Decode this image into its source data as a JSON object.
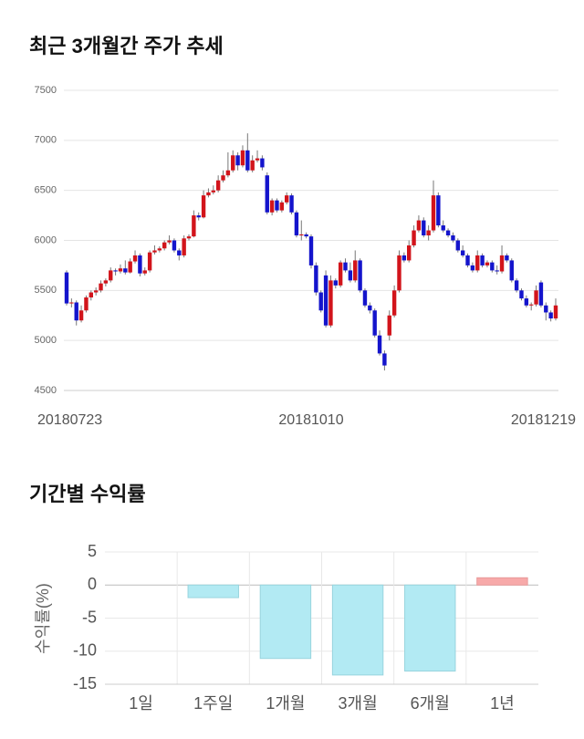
{
  "chart_data": [
    {
      "type": "candlestick",
      "title": "최근 3개월간 주가 추세",
      "up_color": "#d2141b",
      "down_color": "#1414cc",
      "ylim": [
        4500,
        7500
      ],
      "yticks": [
        4500,
        5000,
        5500,
        6000,
        6500,
        7000,
        7500
      ],
      "grid": true,
      "label_indices": [
        0,
        50,
        100
      ],
      "labels": [
        "20180723",
        "20181010",
        "20181219"
      ],
      "ohlc": [
        [
          5680,
          5700,
          5350,
          5370
        ],
        [
          5370,
          5420,
          5330,
          5380
        ],
        [
          5380,
          5400,
          5150,
          5200
        ],
        [
          5200,
          5350,
          5180,
          5300
        ],
        [
          5300,
          5450,
          5280,
          5430
        ],
        [
          5430,
          5500,
          5400,
          5480
        ],
        [
          5480,
          5530,
          5450,
          5500
        ],
        [
          5500,
          5600,
          5480,
          5570
        ],
        [
          5570,
          5620,
          5540,
          5600
        ],
        [
          5600,
          5730,
          5580,
          5700
        ],
        [
          5700,
          5720,
          5650,
          5690
        ],
        [
          5690,
          5760,
          5670,
          5720
        ],
        [
          5720,
          5800,
          5660,
          5680
        ],
        [
          5680,
          5820,
          5670,
          5790
        ],
        [
          5790,
          5900,
          5770,
          5850
        ],
        [
          5850,
          5870,
          5640,
          5670
        ],
        [
          5670,
          5730,
          5650,
          5700
        ],
        [
          5700,
          5900,
          5680,
          5880
        ],
        [
          5880,
          5950,
          5860,
          5900
        ],
        [
          5900,
          5940,
          5880,
          5920
        ],
        [
          5920,
          6000,
          5900,
          5980
        ],
        [
          5980,
          6050,
          5960,
          6000
        ],
        [
          6000,
          6020,
          5880,
          5900
        ],
        [
          5900,
          5920,
          5800,
          5850
        ],
        [
          5850,
          6050,
          5830,
          6020
        ],
        [
          6020,
          6060,
          6000,
          6040
        ],
        [
          6040,
          6300,
          6030,
          6250
        ],
        [
          6250,
          6280,
          6200,
          6230
        ],
        [
          6230,
          6500,
          6220,
          6450
        ],
        [
          6450,
          6520,
          6430,
          6480
        ],
        [
          6480,
          6550,
          6460,
          6500
        ],
        [
          6500,
          6650,
          6480,
          6600
        ],
        [
          6600,
          6700,
          6580,
          6650
        ],
        [
          6650,
          6880,
          6630,
          6700
        ],
        [
          6700,
          6900,
          6680,
          6850
        ],
        [
          6850,
          6880,
          6700,
          6750
        ],
        [
          6750,
          6950,
          6730,
          6900
        ],
        [
          6900,
          7070,
          6680,
          6700
        ],
        [
          6700,
          6850,
          6680,
          6800
        ],
        [
          6800,
          6900,
          6780,
          6820
        ],
        [
          6820,
          6850,
          6700,
          6730
        ],
        [
          6650,
          6680,
          6260,
          6280
        ],
        [
          6280,
          6420,
          6250,
          6400
        ],
        [
          6400,
          6420,
          6280,
          6300
        ],
        [
          6300,
          6400,
          6280,
          6380
        ],
        [
          6380,
          6480,
          6360,
          6450
        ],
        [
          6450,
          6470,
          6260,
          6280
        ],
        [
          6280,
          6300,
          6030,
          6050
        ],
        [
          6050,
          6200,
          6000,
          6060
        ],
        [
          6060,
          6080,
          6020,
          6040
        ],
        [
          6040,
          6060,
          5720,
          5750
        ],
        [
          5750,
          5780,
          5450,
          5480
        ],
        [
          5480,
          5500,
          5280,
          5300
        ],
        [
          5650,
          5700,
          5130,
          5150
        ],
        [
          5150,
          5650,
          5130,
          5600
        ],
        [
          5600,
          5620,
          5520,
          5550
        ],
        [
          5550,
          5800,
          5530,
          5780
        ],
        [
          5780,
          5820,
          5680,
          5700
        ],
        [
          5700,
          5780,
          5580,
          5600
        ],
        [
          5600,
          5900,
          5580,
          5800
        ],
        [
          5800,
          5820,
          5480,
          5500
        ],
        [
          5500,
          5520,
          5330,
          5350
        ],
        [
          5350,
          5380,
          5270,
          5300
        ],
        [
          5300,
          5320,
          5030,
          5050
        ],
        [
          5050,
          5100,
          4850,
          4870
        ],
        [
          4870,
          4900,
          4700,
          4750
        ],
        [
          5050,
          5300,
          5000,
          5250
        ],
        [
          5250,
          5550,
          5230,
          5500
        ],
        [
          5500,
          5900,
          5480,
          5850
        ],
        [
          5850,
          5880,
          5780,
          5800
        ],
        [
          5800,
          6000,
          5780,
          5950
        ],
        [
          5950,
          6150,
          5930,
          6100
        ],
        [
          6100,
          6250,
          6080,
          6200
        ],
        [
          6200,
          6230,
          6030,
          6050
        ],
        [
          6050,
          6150,
          6000,
          6100
        ],
        [
          6100,
          6600,
          6080,
          6450
        ],
        [
          6450,
          6480,
          6130,
          6150
        ],
        [
          6150,
          6200,
          6080,
          6100
        ],
        [
          6100,
          6120,
          6030,
          6050
        ],
        [
          6050,
          6080,
          5980,
          6000
        ],
        [
          6000,
          6020,
          5880,
          5900
        ],
        [
          5900,
          5950,
          5830,
          5850
        ],
        [
          5850,
          5870,
          5730,
          5750
        ],
        [
          5750,
          5780,
          5680,
          5700
        ],
        [
          5700,
          5900,
          5680,
          5850
        ],
        [
          5850,
          5870,
          5730,
          5750
        ],
        [
          5750,
          5800,
          5730,
          5780
        ],
        [
          5780,
          5800,
          5680,
          5700
        ],
        [
          5700,
          5750,
          5660,
          5690
        ],
        [
          5690,
          5950,
          5670,
          5850
        ],
        [
          5850,
          5870,
          5780,
          5800
        ],
        [
          5800,
          5820,
          5580,
          5600
        ],
        [
          5600,
          5620,
          5480,
          5500
        ],
        [
          5500,
          5520,
          5400,
          5420
        ],
        [
          5420,
          5450,
          5330,
          5350
        ],
        [
          5350,
          5380,
          5300,
          5360
        ],
        [
          5360,
          5550,
          5340,
          5500
        ],
        [
          5580,
          5600,
          5330,
          5350
        ],
        [
          5350,
          5380,
          5200,
          5280
        ],
        [
          5280,
          5300,
          5190,
          5220
        ],
        [
          5220,
          5420,
          5200,
          5350
        ]
      ]
    },
    {
      "type": "bar",
      "title": "기간별 수익률",
      "ylabel": "수익률(%)",
      "categories": [
        "1일",
        "1주일",
        "1개월",
        "3개월",
        "6개월",
        "1년"
      ],
      "values": [
        0,
        -1.9,
        -11.1,
        -13.6,
        -13.0,
        1.1
      ],
      "pos_color": "#f7a9a9",
      "neg_color": "#b2eaf3",
      "ylim": [
        -15,
        5
      ],
      "yticks": [
        5,
        0,
        -5,
        -10,
        -15
      ],
      "grid": true
    }
  ]
}
